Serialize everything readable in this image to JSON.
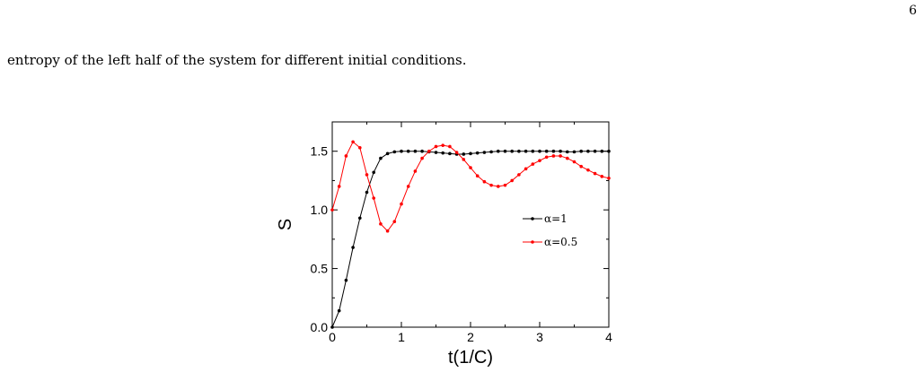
{
  "page": {
    "page_number": "6",
    "body_text": "entropy of the left half of the system for different initial conditions."
  },
  "chart_data": {
    "type": "line",
    "xlabel": "t(1/C)",
    "ylabel": "S",
    "xlim": [
      0,
      4
    ],
    "ylim": [
      0,
      1.75
    ],
    "xticks": [
      "0",
      "1",
      "2",
      "3",
      "4"
    ],
    "yticks": [
      "0.0",
      "0.5",
      "1.0",
      "1.5"
    ],
    "legend_position": "right",
    "series": [
      {
        "name": "α=1",
        "color": "#000000",
        "x": [
          0,
          0.1,
          0.2,
          0.3,
          0.4,
          0.5,
          0.6,
          0.7,
          0.8,
          0.9,
          1.0,
          1.1,
          1.2,
          1.3,
          1.4,
          1.5,
          1.6,
          1.7,
          1.8,
          1.9,
          2.0,
          2.1,
          2.2,
          2.3,
          2.4,
          2.5,
          2.6,
          2.7,
          2.8,
          2.9,
          3.0,
          3.1,
          3.2,
          3.3,
          3.4,
          3.5,
          3.6,
          3.7,
          3.8,
          3.9,
          4.0
        ],
        "y": [
          0.0,
          0.14,
          0.4,
          0.68,
          0.93,
          1.15,
          1.32,
          1.44,
          1.48,
          1.495,
          1.5,
          1.5,
          1.5,
          1.5,
          1.495,
          1.49,
          1.485,
          1.48,
          1.475,
          1.475,
          1.48,
          1.485,
          1.49,
          1.495,
          1.5,
          1.5,
          1.5,
          1.5,
          1.5,
          1.5,
          1.5,
          1.5,
          1.5,
          1.5,
          1.495,
          1.495,
          1.5,
          1.5,
          1.5,
          1.5,
          1.5
        ]
      },
      {
        "name": "α=0.5",
        "color": "#ff0000",
        "x": [
          0,
          0.1,
          0.2,
          0.3,
          0.4,
          0.5,
          0.6,
          0.7,
          0.8,
          0.9,
          1.0,
          1.1,
          1.2,
          1.3,
          1.4,
          1.5,
          1.6,
          1.7,
          1.8,
          1.9,
          2.0,
          2.1,
          2.2,
          2.3,
          2.4,
          2.5,
          2.6,
          2.7,
          2.8,
          2.9,
          3.0,
          3.1,
          3.2,
          3.3,
          3.4,
          3.5,
          3.6,
          3.7,
          3.8,
          3.9,
          4.0
        ],
        "y": [
          1.0,
          1.2,
          1.46,
          1.58,
          1.53,
          1.3,
          1.1,
          0.88,
          0.82,
          0.9,
          1.05,
          1.2,
          1.33,
          1.44,
          1.5,
          1.54,
          1.55,
          1.54,
          1.49,
          1.43,
          1.36,
          1.29,
          1.24,
          1.21,
          1.2,
          1.21,
          1.25,
          1.3,
          1.35,
          1.39,
          1.42,
          1.45,
          1.46,
          1.46,
          1.44,
          1.41,
          1.37,
          1.34,
          1.31,
          1.285,
          1.27
        ]
      }
    ]
  }
}
